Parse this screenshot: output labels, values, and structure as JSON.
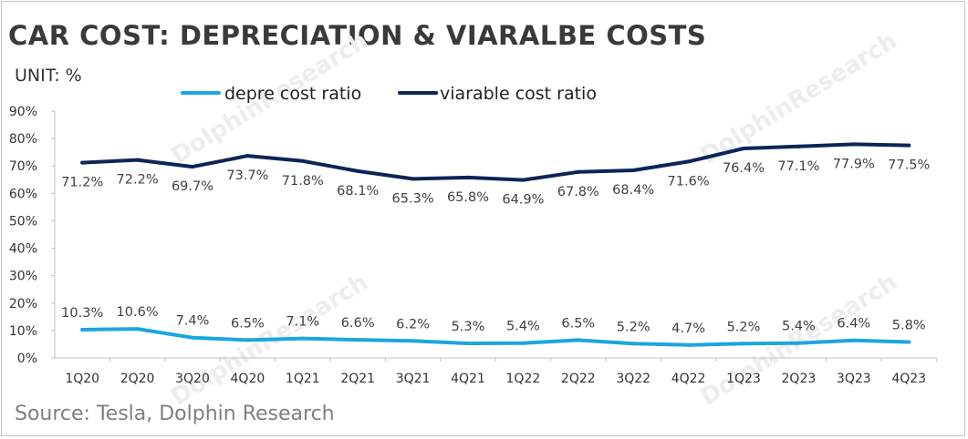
{
  "title": "CAR COST: DEPRECIATION & VIARALBE COSTS",
  "unit": "UNIT:  %",
  "source": "Source: Tesla, Dolphin Research",
  "watermark": "DolphinResearch",
  "colors": {
    "depre": "#1aa6e0",
    "viarable": "#0c2557",
    "title": "#3a3a3a",
    "axis": "#c0c0c0"
  },
  "chart_data": {
    "type": "line",
    "categories": [
      "1Q20",
      "2Q20",
      "3Q20",
      "4Q20",
      "1Q21",
      "2Q21",
      "3Q21",
      "4Q21",
      "1Q22",
      "2Q22",
      "3Q22",
      "4Q22",
      "1Q23",
      "2Q23",
      "3Q23",
      "4Q23"
    ],
    "series": [
      {
        "name": "depre cost ratio",
        "values": [
          10.3,
          10.6,
          7.4,
          6.5,
          7.1,
          6.6,
          6.2,
          5.3,
          5.4,
          6.5,
          5.2,
          4.7,
          5.2,
          5.4,
          6.4,
          5.8
        ],
        "labels": [
          "10.3%",
          "10.6%",
          "7.4%",
          "6.5%",
          "7.1%",
          "6.6%",
          "6.2%",
          "5.3%",
          "5.4%",
          "6.5%",
          "5.2%",
          "4.7%",
          "5.2%",
          "5.4%",
          "6.4%",
          "5.8%"
        ]
      },
      {
        "name": "viarable cost ratio",
        "values": [
          71.2,
          72.2,
          69.7,
          73.7,
          71.8,
          68.1,
          65.3,
          65.8,
          64.9,
          67.8,
          68.4,
          71.6,
          76.4,
          77.1,
          77.9,
          77.5
        ],
        "labels": [
          "71.2%",
          "72.2%",
          "69.7%",
          "73.7%",
          "71.8%",
          "68.1%",
          "65.3%",
          "65.8%",
          "64.9%",
          "67.8%",
          "68.4%",
          "71.6%",
          "76.4%",
          "77.1%",
          "77.9%",
          "77.5%"
        ]
      }
    ],
    "ylim": [
      0,
      90
    ],
    "yticks": [
      "0%",
      "10%",
      "20%",
      "30%",
      "40%",
      "50%",
      "60%",
      "70%",
      "80%",
      "90%"
    ],
    "grid": false,
    "legend": "top"
  }
}
